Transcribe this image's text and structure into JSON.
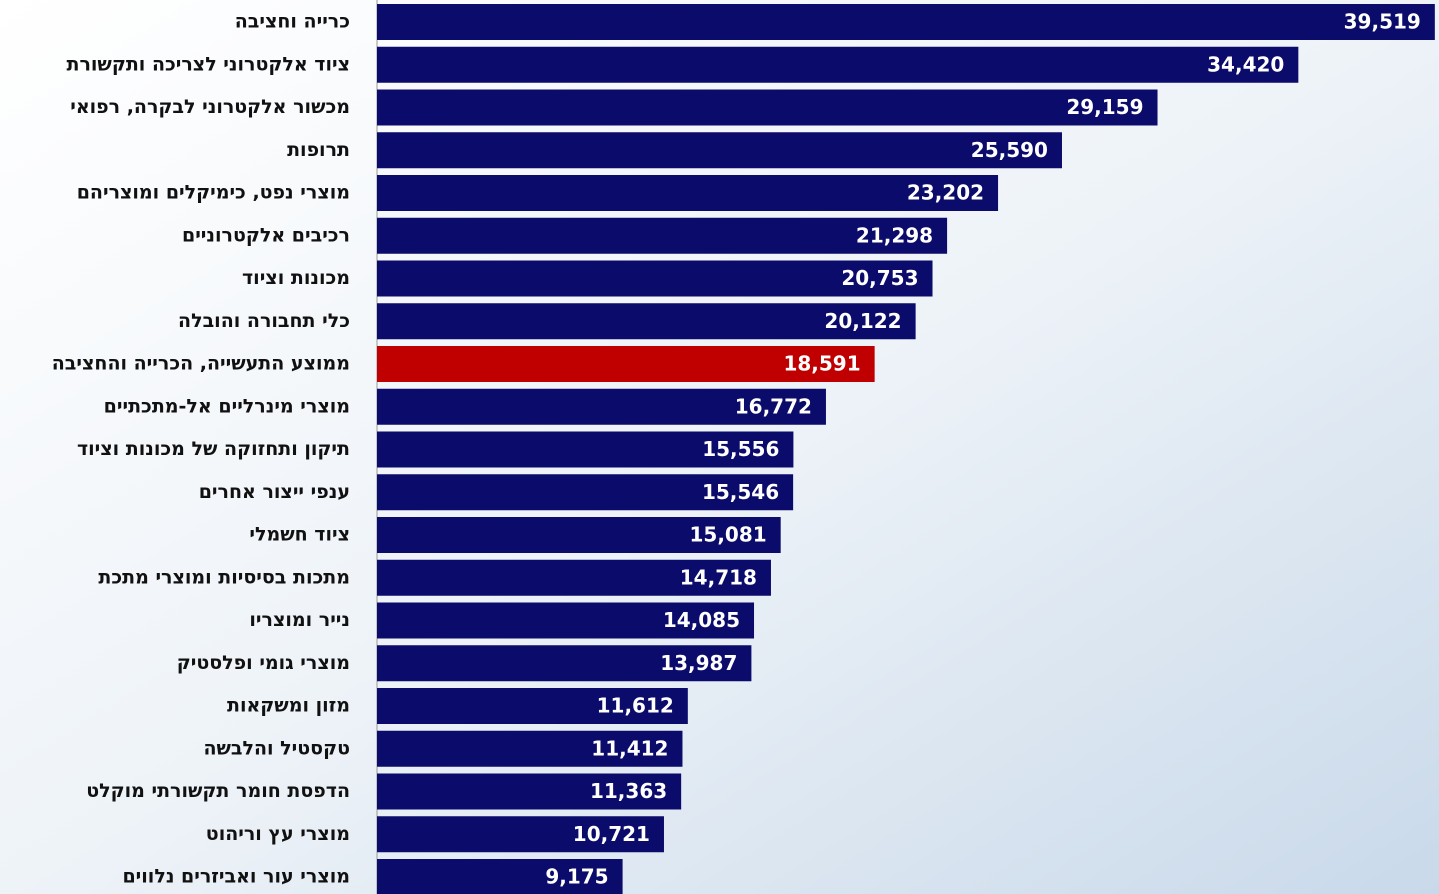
{
  "chart_data": {
    "type": "barh",
    "categories": [
      "כרייה וחציבה",
      "ציוד אלקטרוני לצריכה ותקשורת",
      "מכשור אלקטרוני לבקרה, רפואי",
      "תרופות",
      "מוצרי נפט, כימיקלים ומוצריהם",
      "רכיבים אלקטרוניים",
      "מכונות וציוד",
      "כלי תחבורה והובלה",
      "ממוצע התעשייה, הכרייה והחציבה",
      "מוצרי מינרליים אל-מתכתיים",
      "תיקון ותחזוקה של מכונות וציוד",
      "ענפי ייצור אחרים",
      "ציוד חשמלי",
      "מתכות בסיסיות ומוצרי מתכת",
      "נייר ומוצריו",
      "מוצרי גומי ופלסטיק",
      "מזון ומשקאות",
      "טקסטיל והלבשה",
      "הדפסת חומר תקשורתי מוקלט",
      "מוצרי עץ וריהוט",
      "מוצרי עור ואביזרים נלווים"
    ],
    "values": [
      39519,
      34420,
      29159,
      25590,
      23202,
      21298,
      20753,
      20122,
      18591,
      16772,
      15556,
      15546,
      15081,
      14718,
      14085,
      13987,
      11612,
      11412,
      11363,
      10721,
      9175
    ],
    "value_labels": [
      "39,519",
      "34,420",
      "29,159",
      "25,590",
      "23,202",
      "21,298",
      "20,753",
      "20,122",
      "18,591",
      "16,772",
      "15,556",
      "15,546",
      "15,081",
      "14,718",
      "14,085",
      "13,987",
      "11,612",
      "11,412",
      "11,363",
      "10,721",
      "9,175"
    ],
    "colors": [
      "#0b0b6b",
      "#0b0b6b",
      "#0b0b6b",
      "#0b0b6b",
      "#0b0b6b",
      "#0b0b6b",
      "#0b0b6b",
      "#0b0b6b",
      "#c00000",
      "#0b0b6b",
      "#0b0b6b",
      "#0b0b6b",
      "#0b0b6b",
      "#0b0b6b",
      "#0b0b6b",
      "#0b0b6b",
      "#0b0b6b",
      "#0b0b6b",
      "#0b0b6b",
      "#0b0b6b",
      "#0b0b6b"
    ],
    "xlim": [
      0,
      39600
    ]
  }
}
